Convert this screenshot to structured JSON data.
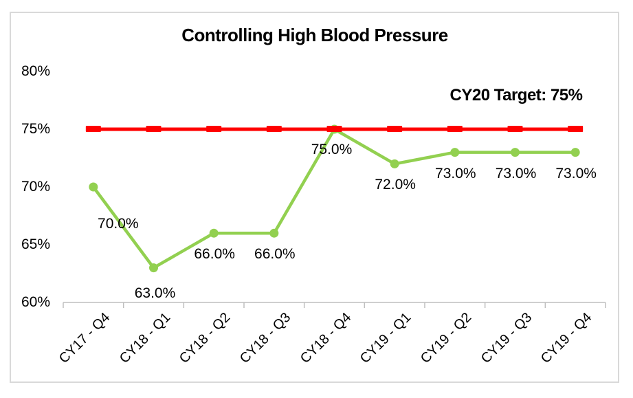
{
  "chart_data": {
    "type": "line",
    "title": "Controlling High Blood Pressure",
    "categories": [
      "CY17 - Q4",
      "CY18 - Q1",
      "CY18 - Q2",
      "CY18 - Q3",
      "CY18 - Q4",
      "CY19 - Q1",
      "CY19 - Q2",
      "CY19 - Q3",
      "CY19 - Q4"
    ],
    "series": [
      {
        "name": "Controlling High Blood Pressure",
        "values": [
          70,
          63,
          66,
          66,
          75,
          72,
          73,
          73,
          73
        ],
        "data_labels": [
          "70.0%",
          "63.0%",
          "66.0%",
          "66.0%",
          "75.0%",
          "72.0%",
          "73.0%",
          "73.0%",
          "73.0%"
        ],
        "color": "#92D050",
        "marker": "circle"
      },
      {
        "name": "CY20 Target",
        "values": [
          75,
          75,
          75,
          75,
          75,
          75,
          75,
          75,
          75
        ],
        "color": "#FF0000",
        "marker": "dash"
      }
    ],
    "target": {
      "label": "CY20 Target: 75%",
      "value": 75
    },
    "ylim": [
      60,
      80
    ],
    "y_tick_values": [
      80,
      75,
      70,
      65,
      60
    ],
    "y_tick_labels": [
      "80%",
      "75%",
      "70%",
      "65%",
      "60%"
    ],
    "xlabel": "",
    "ylabel": "",
    "grid": false,
    "legend": false,
    "colors": {
      "axis": "#BFBFBF",
      "frame_border": "#D9D9D9",
      "text": "#000000",
      "background": "#FFFFFF"
    }
  }
}
